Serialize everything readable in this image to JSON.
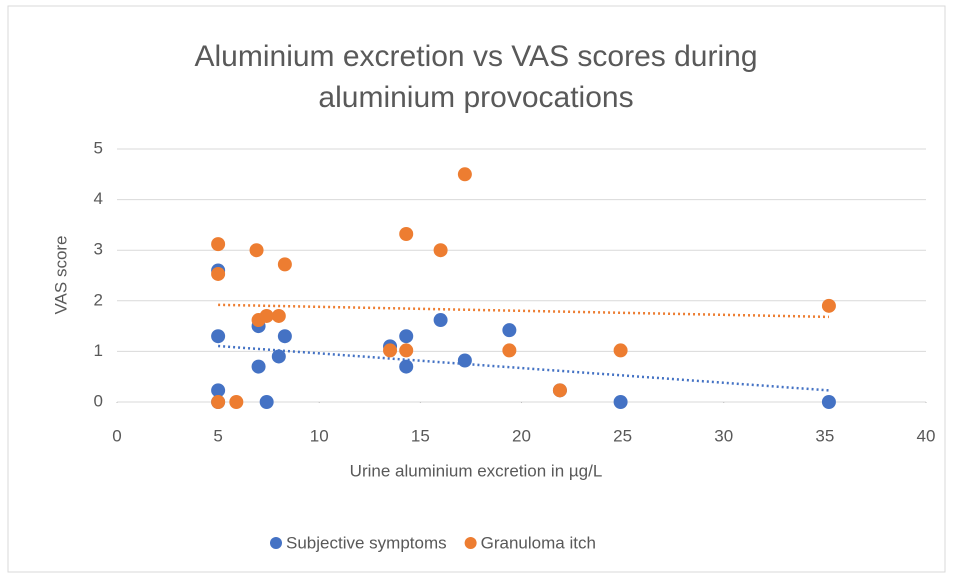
{
  "chart_data": {
    "type": "scatter",
    "title": "Aluminium excretion vs VAS scores during aluminium provocations",
    "xlabel": "Urine aluminium excretion in µg/L",
    "ylabel": "VAS score",
    "xlim": [
      0,
      40
    ],
    "xticks": [
      0,
      5,
      10,
      15,
      20,
      25,
      30,
      35,
      40
    ],
    "ylim": [
      0,
      5
    ],
    "yticks": [
      0,
      1,
      2,
      3,
      4,
      5
    ],
    "grid": true,
    "legend": "bottom",
    "trendline": true,
    "series": [
      {
        "name": "Subjective symptoms",
        "color": "#4472c4",
        "x": [
          5,
          5,
          5,
          5,
          7.4,
          7,
          7,
          8.3,
          8,
          13.5,
          14.3,
          14.3,
          16,
          17.2,
          19.4,
          21.9,
          24.9,
          35.2
        ],
        "values": [
          2.6,
          1.3,
          0.23,
          0,
          0,
          1.5,
          0.7,
          1.3,
          0.9,
          1.1,
          1.3,
          0.7,
          1.62,
          0.82,
          1.42,
          0.23,
          0,
          0
        ]
      },
      {
        "name": "Granuloma itch",
        "color": "#ed7d31",
        "x": [
          5,
          5,
          5,
          5.9,
          6.9,
          7,
          7.4,
          8,
          8.3,
          13.5,
          14.3,
          14.3,
          16,
          17.2,
          19.4,
          21.9,
          24.9,
          35.2
        ],
        "values": [
          3.12,
          2.53,
          0,
          0,
          3,
          1.62,
          1.7,
          1.7,
          2.72,
          1.02,
          3.32,
          1.02,
          3,
          4.5,
          1.02,
          0.23,
          1.02,
          1.9
        ]
      }
    ]
  }
}
